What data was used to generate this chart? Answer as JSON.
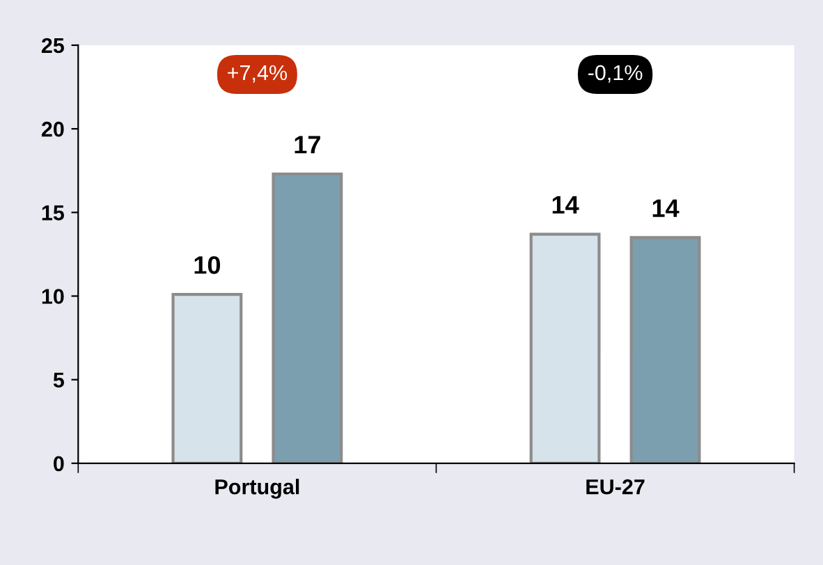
{
  "chart_data": {
    "type": "bar",
    "categories": [
      "Portugal",
      "EU-27"
    ],
    "series": [
      {
        "color": "#d6e3ea",
        "values": [
          10.1,
          13.7
        ],
        "value_labels": [
          "10",
          "14"
        ]
      },
      {
        "color": "#7b9fae",
        "values": [
          17.3,
          13.5
        ],
        "value_labels": [
          "17",
          "14"
        ]
      }
    ],
    "ylim": [
      0,
      25
    ],
    "yticks": [
      0,
      5,
      10,
      15,
      20,
      25
    ],
    "grid": false,
    "annotations": [
      "+7,4%",
      "-0,1%"
    ]
  }
}
